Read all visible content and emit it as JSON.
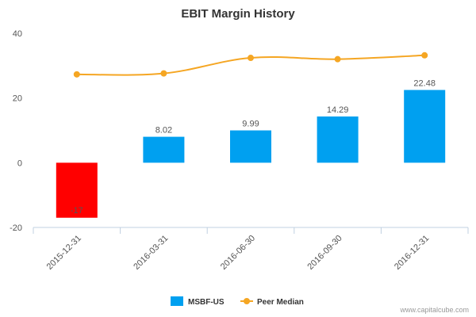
{
  "chart_data": {
    "type": "bar",
    "title": "EBIT Margin History",
    "categories": [
      "2015-12-31",
      "2016-03-31",
      "2016-06-30",
      "2016-09-30",
      "2016-12-31"
    ],
    "ylim": [
      -20,
      40
    ],
    "yticks": [
      "-20",
      "0",
      "20",
      "40"
    ],
    "series": [
      {
        "name": "MSBF-US",
        "kind": "bar",
        "values": [
          -17,
          8.02,
          9.99,
          14.29,
          22.48
        ],
        "labels": [
          "-17",
          "8.02",
          "9.99",
          "14.29",
          "22.48"
        ],
        "color": "#00a0f0",
        "negative_color": "#ff0000"
      },
      {
        "name": "Peer Median",
        "kind": "line",
        "values": [
          27.3,
          27.6,
          32.4,
          32.0,
          33.2
        ],
        "color": "#f5a623"
      }
    ],
    "legend_position": "bottom-center",
    "grid": false
  },
  "credit": "www.capitalcube.com"
}
